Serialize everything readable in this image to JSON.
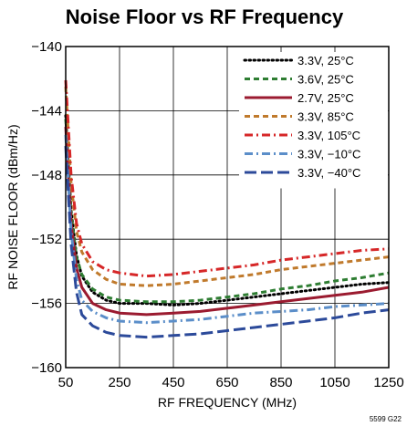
{
  "chart_data": {
    "type": "line",
    "title": "Noise Floor vs RF Frequency",
    "xlabel": "RF FREQUENCY (MHz)",
    "ylabel": "RF NOISE FLOOR (dBm/Hz)",
    "xlim": [
      50,
      1250
    ],
    "ylim": [
      -160,
      -140
    ],
    "xticks": [
      50,
      250,
      450,
      650,
      850,
      1050,
      1250
    ],
    "xtick_labels": [
      "50",
      "250",
      "450",
      "650",
      "850",
      "1050",
      "1250"
    ],
    "yticks": [
      -160,
      -156,
      -152,
      -148,
      -144,
      -140
    ],
    "ytick_labels": [
      "−160",
      "−156",
      "−152",
      "−148",
      "−144",
      "−140"
    ],
    "grid": true,
    "legend_position": "top-right",
    "note": "5599 G22",
    "series": [
      {
        "name": "3.3V, 25°C",
        "color": "#000000",
        "dash": "dotted",
        "x": [
          50,
          70,
          90,
          110,
          150,
          200,
          250,
          350,
          450,
          550,
          650,
          750,
          850,
          950,
          1050,
          1150,
          1250
        ],
        "y": [
          -144.3,
          -150.2,
          -153.0,
          -154.3,
          -155.3,
          -155.8,
          -156.0,
          -156.0,
          -156.1,
          -156.0,
          -155.8,
          -155.6,
          -155.4,
          -155.2,
          -155.0,
          -154.8,
          -154.7
        ]
      },
      {
        "name": "3.6V, 25°C",
        "color": "#2e7d32",
        "dash": "dashed",
        "x": [
          50,
          70,
          90,
          110,
          150,
          200,
          250,
          350,
          450,
          550,
          650,
          750,
          850,
          950,
          1050,
          1150,
          1250
        ],
        "y": [
          -144.5,
          -150.4,
          -153.1,
          -154.2,
          -155.1,
          -155.6,
          -155.8,
          -155.9,
          -155.9,
          -155.8,
          -155.6,
          -155.4,
          -155.1,
          -154.9,
          -154.6,
          -154.4,
          -154.1
        ]
      },
      {
        "name": "2.7V, 25°C",
        "color": "#9b1b30",
        "dash": "solid",
        "x": [
          50,
          70,
          90,
          110,
          150,
          200,
          250,
          350,
          450,
          550,
          650,
          750,
          850,
          950,
          1050,
          1150,
          1250
        ],
        "y": [
          -145.0,
          -151.0,
          -153.8,
          -155.0,
          -156.0,
          -156.4,
          -156.6,
          -156.7,
          -156.6,
          -156.5,
          -156.3,
          -156.1,
          -155.9,
          -155.7,
          -155.5,
          -155.3,
          -155.0
        ]
      },
      {
        "name": "3.3V, 85°C",
        "color": "#c07a2c",
        "dash": "dashed",
        "x": [
          50,
          70,
          90,
          110,
          150,
          200,
          250,
          350,
          450,
          550,
          650,
          750,
          850,
          950,
          1050,
          1150,
          1250
        ],
        "y": [
          -142.5,
          -148.5,
          -151.5,
          -152.8,
          -153.9,
          -154.5,
          -154.8,
          -154.9,
          -154.8,
          -154.6,
          -154.4,
          -154.2,
          -153.9,
          -153.7,
          -153.5,
          -153.3,
          -153.1
        ]
      },
      {
        "name": "3.3V, 105°C",
        "color": "#d62728",
        "dash": "dashdot",
        "x": [
          50,
          70,
          90,
          110,
          150,
          200,
          250,
          350,
          450,
          550,
          650,
          750,
          850,
          950,
          1050,
          1150,
          1250
        ],
        "y": [
          -142.1,
          -148.0,
          -151.0,
          -152.3,
          -153.4,
          -153.9,
          -154.1,
          -154.3,
          -154.2,
          -154.0,
          -153.8,
          -153.6,
          -153.3,
          -153.1,
          -152.9,
          -152.7,
          -152.6
        ]
      },
      {
        "name": "3.3V, −10°C",
        "color": "#5b8ec9",
        "dash": "dashdot",
        "x": [
          50,
          70,
          90,
          110,
          150,
          200,
          250,
          350,
          450,
          550,
          650,
          750,
          850,
          950,
          1050,
          1150,
          1250
        ],
        "y": [
          -145.5,
          -151.5,
          -154.5,
          -155.8,
          -156.5,
          -156.9,
          -157.1,
          -157.2,
          -157.1,
          -157.0,
          -156.8,
          -156.6,
          -156.5,
          -156.4,
          -156.2,
          -156.1,
          -156.0
        ]
      },
      {
        "name": "3.3V, −40°C",
        "color": "#2c4a9a",
        "dash": "longdash",
        "x": [
          50,
          70,
          90,
          110,
          150,
          200,
          250,
          350,
          450,
          550,
          650,
          750,
          850,
          950,
          1050,
          1150,
          1250
        ],
        "y": [
          -146.2,
          -152.3,
          -155.3,
          -156.7,
          -157.4,
          -157.8,
          -158.0,
          -158.1,
          -158.0,
          -157.9,
          -157.7,
          -157.5,
          -157.3,
          -157.1,
          -156.9,
          -156.6,
          -156.4
        ]
      }
    ]
  }
}
